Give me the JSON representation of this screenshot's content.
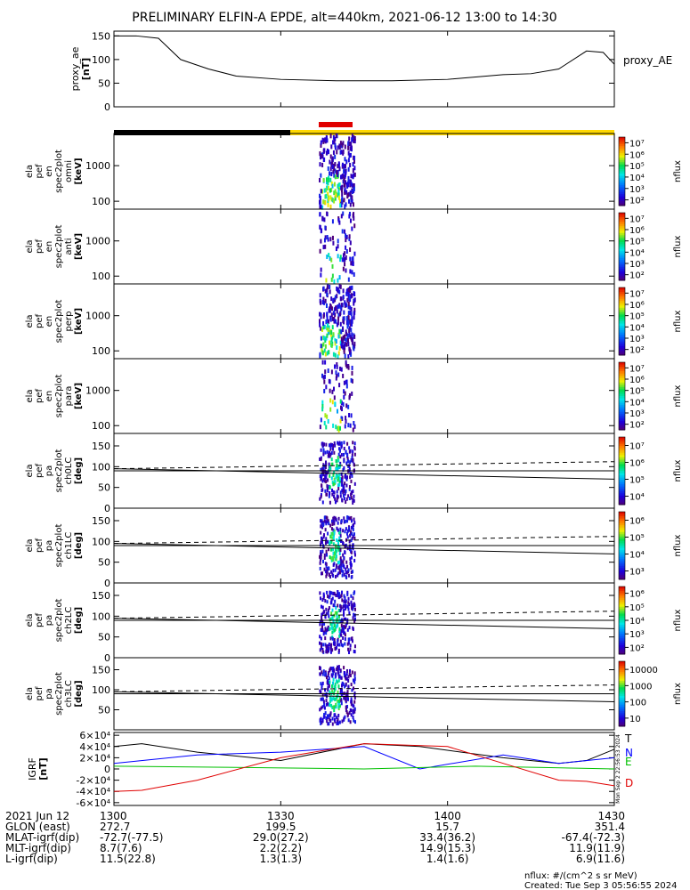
{
  "title": "PRELIMINARY ELFIN-A EPDE, alt=440km, 2021-06-12 13:00 to 14:30",
  "colors": {
    "night_bar": "#000000",
    "day_bar": "#ffd800",
    "science_zone": "#e00000",
    "grf_T": "#000000",
    "grf_N": "#0000ff",
    "grf_E": "#00c000",
    "grf_D": "#e00000"
  },
  "chart_data": [
    {
      "id": "proxy_ae",
      "type": "line",
      "ylabel": "proxy_ae",
      "yunit": "[nT]",
      "right_label": "proxy_AE",
      "ylim": [
        0,
        160
      ],
      "yticks": [
        "0",
        "50",
        "100",
        "150"
      ],
      "ytick_values": [
        0,
        50,
        100,
        150
      ],
      "x": [
        0,
        4,
        8,
        12,
        17,
        22,
        30,
        40,
        50,
        60,
        70,
        75,
        80,
        85,
        88,
        90
      ],
      "y": [
        150,
        150,
        145,
        100,
        80,
        65,
        58,
        55,
        55,
        58,
        68,
        70,
        80,
        118,
        115,
        90
      ]
    },
    {
      "id": "en_omni",
      "type": "heatmap",
      "ylabel_lines": [
        "ela",
        "pef",
        "en",
        "spec2plot",
        "omni",
        "[keV]"
      ],
      "yscale": "log",
      "ylim": [
        60,
        8000
      ],
      "yticks": [
        "100",
        "1000"
      ],
      "ytick_values": [
        100,
        1000
      ],
      "colorbar": {
        "label": "nflux",
        "scale": "log",
        "ticks": [
          "10^2",
          "10^3",
          "10^4",
          "10^5",
          "10^6",
          "10^7"
        ]
      }
    },
    {
      "id": "en_anti",
      "type": "heatmap",
      "ylabel_lines": [
        "ela",
        "pef",
        "en",
        "spec2plot",
        "anti",
        "[keV]"
      ],
      "yscale": "log",
      "ylim": [
        60,
        8000
      ],
      "yticks": [
        "100",
        "1000"
      ],
      "ytick_values": [
        100,
        1000
      ],
      "colorbar": {
        "label": "nflux",
        "scale": "log",
        "ticks": [
          "10^2",
          "10^3",
          "10^4",
          "10^5",
          "10^6",
          "10^7"
        ]
      }
    },
    {
      "id": "en_perp",
      "type": "heatmap",
      "ylabel_lines": [
        "ela",
        "pef",
        "en",
        "spec2plot",
        "perp",
        "[keV]"
      ],
      "yscale": "log",
      "ylim": [
        60,
        8000
      ],
      "yticks": [
        "100",
        "1000"
      ],
      "ytick_values": [
        100,
        1000
      ],
      "colorbar": {
        "label": "nflux",
        "scale": "log",
        "ticks": [
          "10^2",
          "10^3",
          "10^4",
          "10^5",
          "10^6",
          "10^7"
        ]
      }
    },
    {
      "id": "en_para",
      "type": "heatmap",
      "ylabel_lines": [
        "ela",
        "pef",
        "en",
        "spec2plot",
        "para",
        "[keV]"
      ],
      "yscale": "log",
      "ylim": [
        60,
        8000
      ],
      "yticks": [
        "100",
        "1000"
      ],
      "ytick_values": [
        100,
        1000
      ],
      "colorbar": {
        "label": "nflux",
        "scale": "log",
        "ticks": [
          "10^2",
          "10^3",
          "10^4",
          "10^5",
          "10^6",
          "10^7"
        ]
      }
    },
    {
      "id": "pa_ch0",
      "type": "heatmap",
      "ylabel_lines": [
        "ela",
        "pef",
        "pa",
        "spec2plot",
        "ch0LC",
        "[deg]"
      ],
      "ylim": [
        0,
        180
      ],
      "yticks": [
        "0",
        "50",
        "100",
        "150"
      ],
      "ytick_values": [
        0,
        50,
        100,
        150
      ],
      "colorbar": {
        "label": "nflux",
        "scale": "log",
        "ticks": [
          "10^4",
          "10^5",
          "10^6",
          "10^7"
        ]
      }
    },
    {
      "id": "pa_ch1",
      "type": "heatmap",
      "ylabel_lines": [
        "ela",
        "pef",
        "pa",
        "spec2plot",
        "ch1LC",
        "[deg]"
      ],
      "ylim": [
        0,
        180
      ],
      "yticks": [
        "0",
        "50",
        "100",
        "150"
      ],
      "ytick_values": [
        0,
        50,
        100,
        150
      ],
      "colorbar": {
        "label": "nflux",
        "scale": "log",
        "ticks": [
          "10^3",
          "10^4",
          "10^5",
          "10^6"
        ]
      }
    },
    {
      "id": "pa_ch2",
      "type": "heatmap",
      "ylabel_lines": [
        "ela",
        "pef",
        "pa",
        "spec2plot",
        "ch2LC",
        "[deg]"
      ],
      "ylim": [
        0,
        180
      ],
      "yticks": [
        "0",
        "50",
        "100",
        "150"
      ],
      "ytick_values": [
        0,
        50,
        100,
        150
      ],
      "colorbar": {
        "label": "nflux",
        "scale": "log",
        "ticks": [
          "10^2",
          "10^3",
          "10^4",
          "10^5",
          "10^6"
        ]
      }
    },
    {
      "id": "pa_ch3",
      "type": "heatmap",
      "ylabel_lines": [
        "ela",
        "pef",
        "pa",
        "spec2plot",
        "ch3LC",
        "[deg]"
      ],
      "ylim": [
        0,
        180
      ],
      "yticks": [
        "50",
        "100",
        "150"
      ],
      "ytick_values": [
        50,
        100,
        150
      ],
      "colorbar": {
        "label": "nflux",
        "scale": "log",
        "ticks": [
          "10",
          "100",
          "1000",
          "10000"
        ]
      }
    },
    {
      "id": "igrf",
      "type": "line",
      "ylabel": "IGRF",
      "yunit": "[nT]",
      "ylim": [
        -65000,
        65000
      ],
      "yticks": [
        "-6×10^4",
        "-4×10^4",
        "-2×10^4",
        "0",
        "2×10^4",
        "4×10^4",
        "6×10^4"
      ],
      "ytick_values": [
        -60000,
        -40000,
        -20000,
        0,
        20000,
        40000,
        60000
      ],
      "side_note": "Mon Sep 2 22:56:53 2024",
      "series": [
        {
          "name": "T",
          "x": [
            0,
            5,
            15,
            30,
            45,
            55,
            70,
            80,
            85,
            90
          ],
          "y": [
            40000,
            45000,
            30000,
            15000,
            45000,
            40000,
            20000,
            10000,
            15000,
            35000
          ]
        },
        {
          "name": "N",
          "x": [
            0,
            15,
            30,
            45,
            55,
            70,
            80,
            90
          ],
          "y": [
            10000,
            25000,
            30000,
            40000,
            0,
            25000,
            10000,
            20000
          ]
        },
        {
          "name": "E",
          "x": [
            0,
            20,
            45,
            65,
            90
          ],
          "y": [
            5000,
            3000,
            0,
            5000,
            0
          ]
        },
        {
          "name": "D",
          "x": [
            0,
            5,
            15,
            30,
            45,
            60,
            70,
            80,
            85,
            90
          ],
          "y": [
            -40000,
            -38000,
            -20000,
            20000,
            45000,
            40000,
            10000,
            -20000,
            -22000,
            -30000
          ]
        }
      ]
    }
  ],
  "axis": {
    "xlim_min": [
      0,
      90
    ],
    "rows": [
      {
        "label": "2021 Jun 12",
        "values": [
          "1300",
          "1330",
          "1400",
          "1430"
        ]
      },
      {
        "label": "GLON (east)",
        "values": [
          "272.7",
          "199.5",
          "15.7",
          "351.4"
        ]
      },
      {
        "label": "MLAT-igrf(dip)",
        "values": [
          "-72.7(-77.5)",
          "29.0(27.2)",
          "33.4(36.2)",
          "-67.4(-72.3)"
        ]
      },
      {
        "label": "MLT-igrf(dip)",
        "values": [
          "8.7(7.6)",
          "2.2(2.2)",
          "14.9(15.3)",
          "11.9(11.9)"
        ]
      },
      {
        "label": "L-igrf(dip)",
        "values": [
          "11.5(22.8)",
          "1.3(1.3)",
          "1.4(1.6)",
          "6.9(11.6)"
        ]
      }
    ],
    "tick_minutes": [
      0,
      30,
      60,
      90
    ]
  },
  "footer": {
    "units": "nflux: #/(cm^2 s sr MeV)",
    "created": "Created: Tue Sep  3 05:56:55 2024"
  }
}
